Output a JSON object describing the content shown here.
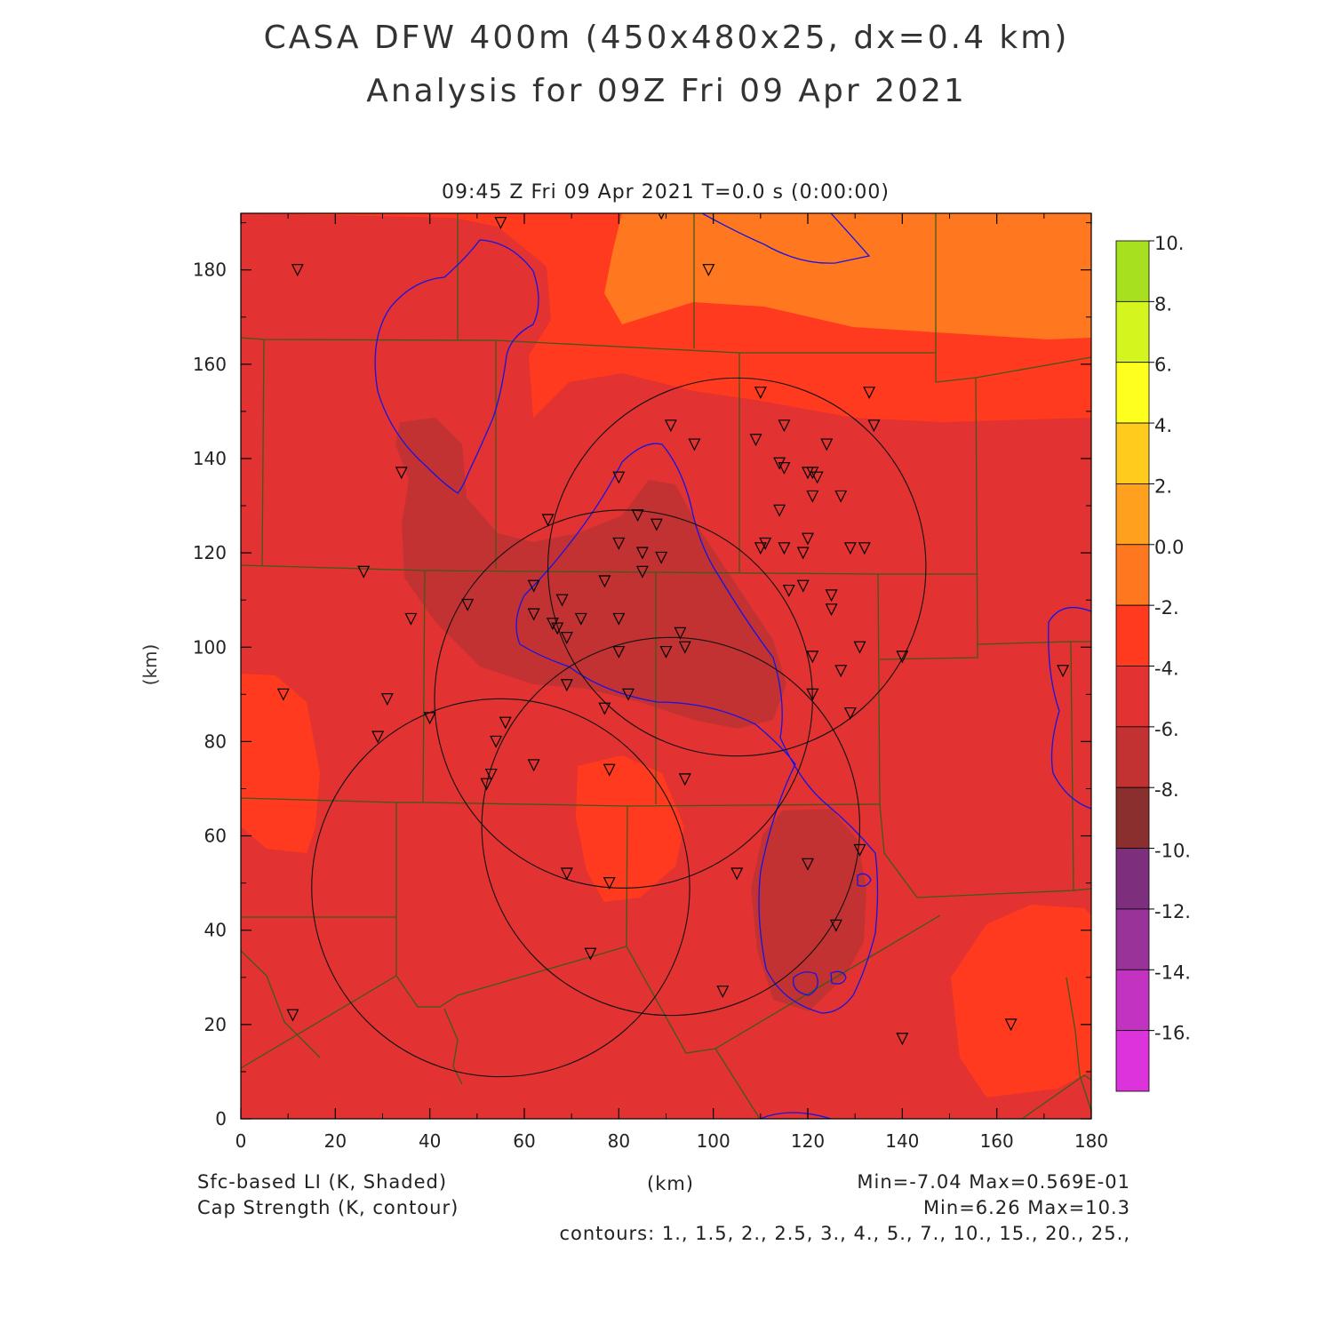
{
  "title_line1": "CASA DFW 400m (450x480x25, dx=0.4 km)",
  "title_line2": "Analysis for 09Z Fri 09 Apr 2021",
  "subtitle": "09:45 Z Fri 09 Apr 2021    T=0.0 s (0:00:00)",
  "axes": {
    "x_label": "(km)",
    "y_label": "(km)",
    "x_ticks": [
      "0",
      "20",
      "40",
      "60",
      "80",
      "100",
      "120",
      "140",
      "160",
      "180"
    ],
    "y_ticks": [
      "0",
      "20",
      "40",
      "60",
      "80",
      "100",
      "120",
      "140",
      "160",
      "180"
    ],
    "x_range": [
      0,
      180
    ],
    "y_range": [
      0,
      192
    ]
  },
  "colorbar": {
    "labels": [
      "10.",
      "8.",
      "6.",
      "4.",
      "2.",
      "0.0",
      "-2.",
      "-4.",
      "-6.",
      "-8.",
      "-10.",
      "-12.",
      "-14.",
      "-16."
    ],
    "colors": [
      "#a6e01e",
      "#d4f51e",
      "#ffff1e",
      "#ffcc1e",
      "#ffa01e",
      "#ff7820",
      "#ff3a1e",
      "#e23232",
      "#c33232",
      "#8b2e2e",
      "#7d2e7d",
      "#993399",
      "#c233c2",
      "#dd33dd"
    ]
  },
  "footer": {
    "field1": "Sfc-based LI (K, Shaded)",
    "field2": "Cap Strength (K, contour)",
    "center_label": "(km)",
    "stats1": "Min=-7.04 Max=0.569E-01",
    "stats2": "Min=6.26 Max=10.3",
    "contours": "contours: 1., 1.5, 2., 2.5, 3., 4., 5., 7., 10., 15., 20., 25.,"
  },
  "radar_rings": [
    {
      "x": 105,
      "y": 117,
      "r": 40
    },
    {
      "x": 81,
      "y": 89,
      "r": 40
    },
    {
      "x": 91,
      "y": 62,
      "r": 40
    },
    {
      "x": 55,
      "y": 49,
      "r": 40
    }
  ],
  "stations": [
    [
      12,
      180
    ],
    [
      55,
      190
    ],
    [
      89,
      192
    ],
    [
      99,
      180
    ],
    [
      34,
      137
    ],
    [
      26,
      116
    ],
    [
      36,
      106
    ],
    [
      31,
      89
    ],
    [
      9,
      90
    ],
    [
      29,
      81
    ],
    [
      40,
      85
    ],
    [
      48,
      109
    ],
    [
      54,
      80
    ],
    [
      53,
      73
    ],
    [
      52,
      71
    ],
    [
      56,
      84
    ],
    [
      62,
      113
    ],
    [
      62,
      107
    ],
    [
      62,
      75
    ],
    [
      65,
      127
    ],
    [
      66,
      105
    ],
    [
      67,
      104
    ],
    [
      68,
      110
    ],
    [
      69,
      102
    ],
    [
      69,
      92
    ],
    [
      69,
      52
    ],
    [
      72,
      106
    ],
    [
      77,
      114
    ],
    [
      77,
      87
    ],
    [
      78,
      74
    ],
    [
      78,
      50
    ],
    [
      80,
      136
    ],
    [
      80,
      122
    ],
    [
      80,
      106
    ],
    [
      80,
      99
    ],
    [
      82,
      90
    ],
    [
      84,
      128
    ],
    [
      85,
      120
    ],
    [
      85,
      116
    ],
    [
      88,
      126
    ],
    [
      89,
      119
    ],
    [
      90,
      99
    ],
    [
      91,
      147
    ],
    [
      93,
      103
    ],
    [
      94,
      100
    ],
    [
      94,
      72
    ],
    [
      96,
      143
    ],
    [
      102,
      27
    ],
    [
      105,
      52
    ],
    [
      109,
      144
    ],
    [
      110,
      154
    ],
    [
      110,
      121
    ],
    [
      111,
      122
    ],
    [
      114,
      139
    ],
    [
      114,
      129
    ],
    [
      115,
      121
    ],
    [
      115,
      147
    ],
    [
      115,
      138
    ],
    [
      116,
      112
    ],
    [
      119,
      120
    ],
    [
      119,
      113
    ],
    [
      120,
      137
    ],
    [
      121,
      132
    ],
    [
      121,
      137
    ],
    [
      120,
      123
    ],
    [
      121,
      98
    ],
    [
      121,
      90
    ],
    [
      120,
      54
    ],
    [
      122,
      136
    ],
    [
      124,
      143
    ],
    [
      125,
      111
    ],
    [
      125,
      108
    ],
    [
      126,
      41
    ],
    [
      127,
      132
    ],
    [
      127,
      95
    ],
    [
      129,
      121
    ],
    [
      129,
      86
    ],
    [
      131,
      57
    ],
    [
      131,
      100
    ],
    [
      132,
      121
    ],
    [
      133,
      154
    ],
    [
      134,
      147
    ],
    [
      140,
      17
    ],
    [
      140,
      98
    ],
    [
      163,
      20
    ],
    [
      174,
      95
    ],
    [
      74,
      35
    ],
    [
      11,
      22
    ]
  ]
}
